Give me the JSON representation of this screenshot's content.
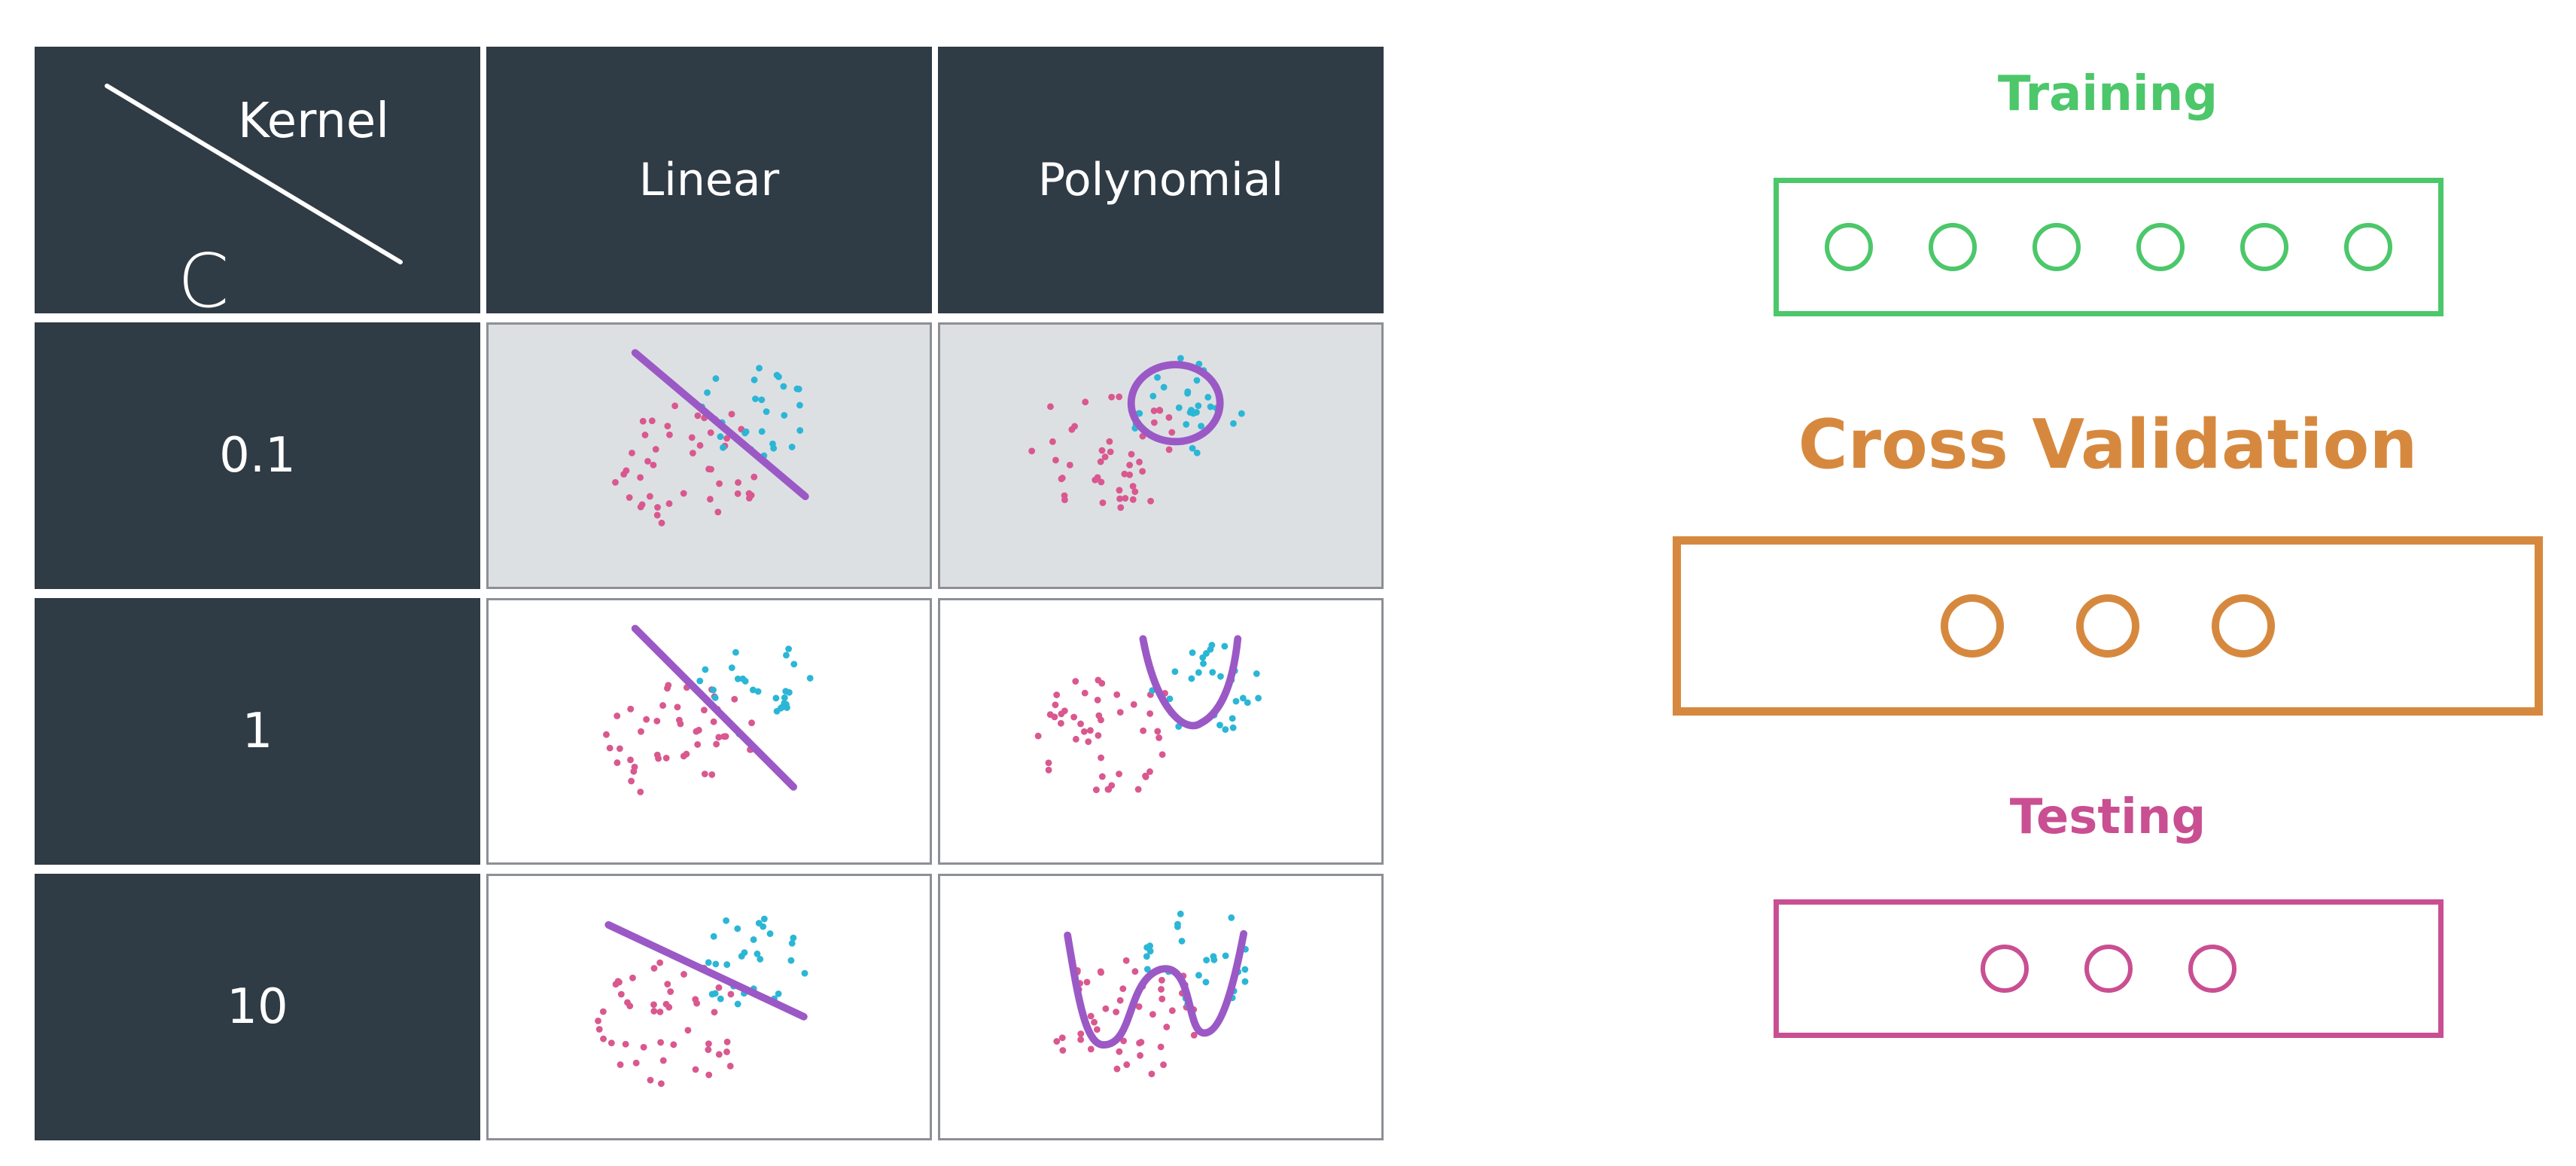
{
  "table": {
    "header": {
      "corner_kernel": "Kernel",
      "corner_c": "C",
      "columns": [
        "Linear",
        "Polynomial"
      ]
    },
    "rows": [
      {
        "c": "0.1",
        "highlighted": true
      },
      {
        "c": "1",
        "highlighted": false
      },
      {
        "c": "10",
        "highlighted": false
      }
    ]
  },
  "colors": {
    "dark_cell": "#2f3b45",
    "highlight_cell": "#dde0e3",
    "boundary": "#9b59c6",
    "pink_points": "#d9588f",
    "cyan_points": "#2cb6d6",
    "training": "#4cc76a",
    "cross_validation": "#d6893e",
    "testing": "#c94f92"
  },
  "sets": {
    "training": {
      "label": "Training",
      "count": 6
    },
    "cross_validation": {
      "label": "Cross Validation",
      "count": 3
    },
    "testing": {
      "label": "Testing",
      "count": 3
    }
  }
}
